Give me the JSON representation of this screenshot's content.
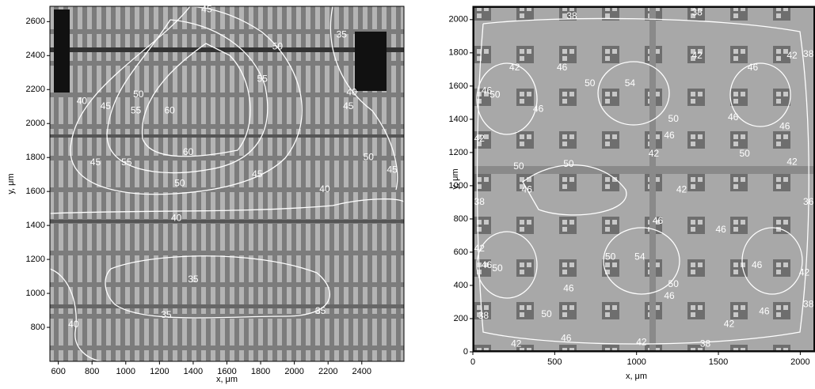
{
  "chart_data": [
    {
      "type": "contour",
      "x_label": "x, μm",
      "y_label": "y, μm",
      "xlim": [
        550,
        2650
      ],
      "ylim": [
        600,
        2690
      ],
      "xticks": [
        600,
        800,
        1000,
        1200,
        1400,
        1600,
        1800,
        2000,
        2200,
        2400
      ],
      "yticks": [
        800,
        1000,
        1200,
        1400,
        1600,
        1800,
        2000,
        2200,
        2400,
        2600
      ],
      "contour_labels": [
        {
          "x": 1480,
          "y": 2670,
          "value": 45
        },
        {
          "x": 2280,
          "y": 2520,
          "value": 35
        },
        {
          "x": 1900,
          "y": 2450,
          "value": 50
        },
        {
          "x": 1810,
          "y": 2260,
          "value": 55
        },
        {
          "x": 740,
          "y": 2130,
          "value": 40
        },
        {
          "x": 880,
          "y": 2100,
          "value": 45
        },
        {
          "x": 1075,
          "y": 2170,
          "value": 50
        },
        {
          "x": 1060,
          "y": 2075,
          "value": 55
        },
        {
          "x": 1260,
          "y": 2075,
          "value": 60
        },
        {
          "x": 2340,
          "y": 2180,
          "value": 40
        },
        {
          "x": 2320,
          "y": 2100,
          "value": 45
        },
        {
          "x": 1370,
          "y": 1830,
          "value": 60
        },
        {
          "x": 2440,
          "y": 1800,
          "value": 50
        },
        {
          "x": 2580,
          "y": 1725,
          "value": 45
        },
        {
          "x": 820,
          "y": 1770,
          "value": 45
        },
        {
          "x": 1005,
          "y": 1770,
          "value": 55
        },
        {
          "x": 1780,
          "y": 1700,
          "value": 45
        },
        {
          "x": 1320,
          "y": 1645,
          "value": 50
        },
        {
          "x": 2180,
          "y": 1610,
          "value": 40
        },
        {
          "x": 1300,
          "y": 1440,
          "value": 40
        },
        {
          "x": 1400,
          "y": 1080,
          "value": 35
        },
        {
          "x": 1240,
          "y": 870,
          "value": 35
        },
        {
          "x": 2155,
          "y": 895,
          "value": 35
        },
        {
          "x": 690,
          "y": 815,
          "value": 40
        }
      ]
    },
    {
      "type": "contour",
      "x_label": "x, μm",
      "y_label": "y, μm",
      "xlim": [
        0,
        2090
      ],
      "ylim": [
        0,
        2080
      ],
      "xticks": [
        0,
        500,
        1000,
        1500,
        2000
      ],
      "yticks": [
        0,
        200,
        400,
        600,
        800,
        1000,
        1200,
        1400,
        1600,
        1800,
        2000
      ],
      "contour_labels": [
        {
          "x": 605,
          "y": 2020,
          "value": 38
        },
        {
          "x": 1370,
          "y": 2040,
          "value": 38
        },
        {
          "x": 255,
          "y": 1710,
          "value": 42
        },
        {
          "x": 545,
          "y": 1710,
          "value": 46
        },
        {
          "x": 1370,
          "y": 1780,
          "value": 42
        },
        {
          "x": 1710,
          "y": 1710,
          "value": 46
        },
        {
          "x": 1950,
          "y": 1780,
          "value": 42
        },
        {
          "x": 2050,
          "y": 1790,
          "value": 38
        },
        {
          "x": 85,
          "y": 1570,
          "value": 46
        },
        {
          "x": 135,
          "y": 1545,
          "value": 50
        },
        {
          "x": 715,
          "y": 1615,
          "value": 50
        },
        {
          "x": 960,
          "y": 1615,
          "value": 54
        },
        {
          "x": 400,
          "y": 1460,
          "value": 46
        },
        {
          "x": 1590,
          "y": 1410,
          "value": 46
        },
        {
          "x": 1225,
          "y": 1400,
          "value": 50
        },
        {
          "x": 1200,
          "y": 1300,
          "value": 46
        },
        {
          "x": 40,
          "y": 1280,
          "value": 42
        },
        {
          "x": 1660,
          "y": 1190,
          "value": 50
        },
        {
          "x": 1905,
          "y": 1355,
          "value": 46
        },
        {
          "x": 1105,
          "y": 1190,
          "value": 42
        },
        {
          "x": 280,
          "y": 1115,
          "value": 50
        },
        {
          "x": 585,
          "y": 1130,
          "value": 50
        },
        {
          "x": 1275,
          "y": 975,
          "value": 42
        },
        {
          "x": 330,
          "y": 975,
          "value": 46
        },
        {
          "x": 1950,
          "y": 1140,
          "value": 42
        },
        {
          "x": 40,
          "y": 900,
          "value": 38
        },
        {
          "x": 2050,
          "y": 900,
          "value": 36
        },
        {
          "x": 1130,
          "y": 785,
          "value": 46
        },
        {
          "x": 1515,
          "y": 735,
          "value": 46
        },
        {
          "x": 40,
          "y": 620,
          "value": 42
        },
        {
          "x": 85,
          "y": 520,
          "value": 46
        },
        {
          "x": 150,
          "y": 500,
          "value": 50
        },
        {
          "x": 840,
          "y": 570,
          "value": 50
        },
        {
          "x": 1020,
          "y": 570,
          "value": 54
        },
        {
          "x": 1735,
          "y": 520,
          "value": 46
        },
        {
          "x": 2025,
          "y": 475,
          "value": 42
        },
        {
          "x": 1225,
          "y": 405,
          "value": 50
        },
        {
          "x": 585,
          "y": 380,
          "value": 46
        },
        {
          "x": 1200,
          "y": 335,
          "value": 46
        },
        {
          "x": 1780,
          "y": 240,
          "value": 46
        },
        {
          "x": 1565,
          "y": 165,
          "value": 42
        },
        {
          "x": 450,
          "y": 225,
          "value": 50
        },
        {
          "x": 65,
          "y": 215,
          "value": 38
        },
        {
          "x": 570,
          "y": 80,
          "value": 46
        },
        {
          "x": 265,
          "y": 45,
          "value": 42
        },
        {
          "x": 1030,
          "y": 55,
          "value": 42
        },
        {
          "x": 1420,
          "y": 45,
          "value": 38
        },
        {
          "x": 2050,
          "y": 285,
          "value": 38
        }
      ]
    }
  ]
}
